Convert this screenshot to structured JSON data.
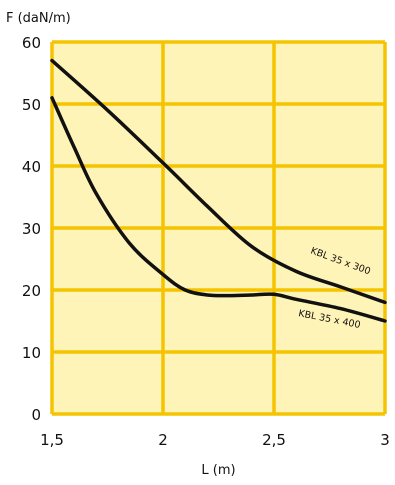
{
  "chart_data": {
    "type": "line",
    "title": "",
    "ylabel": "F (daN/m)",
    "xlabel": "L (m)",
    "xlim": [
      1.5,
      3
    ],
    "ylim": [
      0,
      60
    ],
    "x_ticks": [
      1.5,
      2,
      2.5,
      3
    ],
    "x_tick_labels": [
      "1,5",
      "2",
      "2,5",
      "3"
    ],
    "y_ticks": [
      0,
      10,
      20,
      30,
      40,
      50,
      60
    ],
    "y_tick_labels": [
      "0",
      "10",
      "20",
      "30",
      "40",
      "50",
      "60"
    ],
    "grid": true,
    "colors": {
      "plot_background": "#fff4b8",
      "grid": "#f5c400",
      "line": "#111111"
    },
    "series": [
      {
        "name": "KBL 35 x 300",
        "x": [
          1.5,
          1.75,
          2.0,
          2.2,
          2.4,
          2.6,
          2.8,
          3.0
        ],
        "y": [
          57,
          49,
          40.5,
          33.5,
          27,
          23,
          20.5,
          18
        ]
      },
      {
        "name": "KBL 35 x 400",
        "x": [
          1.5,
          1.6,
          1.7,
          1.85,
          2.0,
          2.1,
          2.2,
          2.3,
          2.4,
          2.5,
          2.6,
          2.8,
          3.0
        ],
        "y": [
          51,
          43,
          35.5,
          27.5,
          22.5,
          20,
          19.2,
          19.1,
          19.2,
          19.3,
          18.5,
          17,
          15
        ]
      }
    ]
  }
}
